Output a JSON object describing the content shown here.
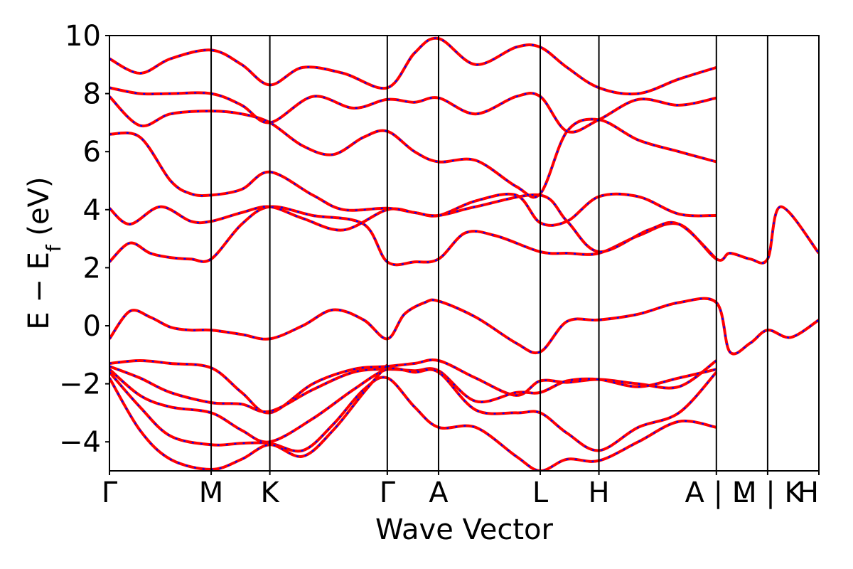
{
  "chart_data": {
    "type": "line",
    "xlabel": "Wave Vector",
    "ylabel": "E − E",
    "ylabel_sub": "f",
    "ylabel_unit": " (eV)",
    "ylim": [
      -5,
      10
    ],
    "yticks": [
      -4,
      -2,
      0,
      2,
      4,
      6,
      8,
      10
    ],
    "ytick_labels": [
      "−4",
      "−2",
      "0",
      "2",
      "4",
      "6",
      "8",
      "10"
    ],
    "grid": false,
    "legend": "none",
    "colors": {
      "dft": "#ff0000",
      "wannier": "#0000ff",
      "frame": "#000000"
    },
    "kpoints": [
      {
        "label": "Γ",
        "x": 0.0
      },
      {
        "label": "M",
        "x": 1.0
      },
      {
        "label": "K",
        "x": 1.577
      },
      {
        "label": "Γ",
        "x": 2.732
      },
      {
        "label": "A",
        "x": 3.236
      },
      {
        "label": "L",
        "x": 4.236
      },
      {
        "label": "H",
        "x": 4.813
      },
      {
        "label": "A | L",
        "x": 5.968
      },
      {
        "label": "M | K",
        "x": 6.472
      },
      {
        "label": "H",
        "x": 6.976
      }
    ],
    "xlim": [
      0.0,
      6.976
    ],
    "series": [
      {
        "x": [
          0,
          0.2,
          0.4,
          0.6,
          0.8,
          1.0,
          1.3,
          1.577,
          1.9,
          2.2,
          2.5,
          2.732,
          2.9,
          3.1,
          3.236,
          3.6,
          4.0,
          4.236,
          4.5,
          4.813,
          5.2,
          5.6,
          5.968,
          6.1,
          6.3,
          6.472,
          6.7,
          6.976
        ],
        "y": [
          -0.45,
          0.5,
          0.3,
          -0.05,
          -0.15,
          -0.15,
          -0.3,
          -0.45,
          0.0,
          0.55,
          0.2,
          -0.45,
          0.4,
          0.8,
          0.85,
          0.3,
          -0.6,
          -0.9,
          0.15,
          0.2,
          0.4,
          0.8,
          0.8,
          -0.9,
          -0.6,
          -0.15,
          -0.4,
          0.2
        ]
      },
      {
        "x": [
          0,
          0.2,
          0.4,
          0.6,
          0.8,
          1.0,
          1.3,
          1.577,
          2.0,
          2.5,
          2.732,
          3.0,
          3.236,
          3.5,
          3.8,
          4.236,
          4.5,
          4.813,
          5.2,
          5.6,
          5.968,
          6.1,
          6.3,
          6.472,
          6.6,
          6.976
        ],
        "y": [
          2.2,
          2.85,
          2.5,
          2.35,
          2.3,
          2.3,
          3.5,
          4.1,
          3.8,
          3.5,
          2.2,
          2.2,
          2.3,
          3.2,
          3.1,
          2.55,
          2.5,
          2.5,
          3.1,
          3.5,
          2.3,
          2.5,
          2.3,
          2.3,
          4.1,
          2.5
        ]
      },
      {
        "x": [
          0,
          0.2,
          0.5,
          0.8,
          1.0,
          1.3,
          1.577,
          1.9,
          2.3,
          2.732,
          3.0,
          3.236,
          3.6,
          4.0,
          4.236,
          4.5,
          4.813,
          5.2,
          5.6,
          5.968
        ],
        "y": [
          4.05,
          3.5,
          4.1,
          3.6,
          3.6,
          3.9,
          4.1,
          3.7,
          3.3,
          4.0,
          3.9,
          3.8,
          4.3,
          4.5,
          3.55,
          3.6,
          4.45,
          4.45,
          3.85,
          3.8
        ]
      },
      {
        "x": [
          0,
          0.3,
          0.6,
          0.8,
          1.0,
          1.3,
          1.577,
          2.0,
          2.3,
          2.732,
          3.0,
          3.236,
          3.6,
          4.236,
          4.5,
          4.813,
          5.3,
          5.6,
          5.968
        ],
        "y": [
          6.6,
          6.5,
          5.0,
          4.55,
          4.5,
          4.7,
          5.3,
          4.5,
          4.0,
          4.05,
          3.9,
          3.8,
          4.1,
          4.5,
          3.6,
          2.55,
          3.3,
          3.5,
          2.3
        ]
      },
      {
        "x": [
          0,
          0.3,
          0.6,
          1.0,
          1.3,
          1.577,
          1.9,
          2.2,
          2.5,
          2.732,
          3.0,
          3.236,
          3.6,
          4.0,
          4.236,
          4.5,
          4.813,
          5.2,
          5.6,
          5.968
        ],
        "y": [
          7.9,
          6.9,
          7.3,
          7.4,
          7.3,
          7.0,
          6.2,
          5.9,
          6.5,
          6.7,
          6.0,
          5.65,
          5.7,
          4.8,
          4.55,
          6.7,
          7.1,
          6.4,
          6.0,
          5.65
        ]
      },
      {
        "x": [
          0,
          0.3,
          0.6,
          1.0,
          1.3,
          1.577,
          2.0,
          2.4,
          2.732,
          3.0,
          3.236,
          3.6,
          4.0,
          4.236,
          4.5,
          4.813,
          5.2,
          5.6,
          5.968
        ],
        "y": [
          8.2,
          8.0,
          8.0,
          8.0,
          7.6,
          7.0,
          7.9,
          7.5,
          7.8,
          7.7,
          7.85,
          7.3,
          7.9,
          7.9,
          6.7,
          7.1,
          7.8,
          7.6,
          7.85
        ]
      },
      {
        "x": [
          0,
          0.3,
          0.6,
          1.0,
          1.3,
          1.577,
          1.9,
          2.3,
          2.732,
          3.0,
          3.236,
          3.6,
          4.0,
          4.236,
          4.5,
          4.813,
          5.2,
          5.6,
          5.968
        ],
        "y": [
          9.2,
          8.7,
          9.2,
          9.5,
          9.0,
          8.3,
          8.9,
          8.7,
          8.2,
          9.4,
          9.9,
          9.0,
          9.6,
          9.6,
          8.9,
          8.2,
          8.0,
          8.5,
          8.9
        ]
      },
      {
        "x": [
          0,
          0.3,
          0.6,
          1.0,
          1.3,
          1.577,
          2.0,
          2.4,
          2.732,
          3.0,
          3.236,
          3.6,
          4.0,
          4.236,
          4.5,
          4.813,
          5.2,
          5.6,
          5.968
        ],
        "y": [
          -1.3,
          -1.2,
          -1.3,
          -1.45,
          -2.3,
          -3.0,
          -2.0,
          -1.5,
          -1.4,
          -1.3,
          -1.2,
          -1.8,
          -2.4,
          -1.9,
          -1.95,
          -1.85,
          -2.0,
          -2.1,
          -1.2
        ]
      },
      {
        "x": [
          0,
          0.3,
          0.6,
          1.0,
          1.3,
          1.577,
          2.0,
          2.4,
          2.732,
          3.0,
          3.236,
          3.6,
          4.0,
          4.236,
          4.5,
          4.813,
          5.2,
          5.6,
          5.968
        ],
        "y": [
          -1.4,
          -1.8,
          -2.3,
          -2.65,
          -2.7,
          -2.95,
          -2.2,
          -1.6,
          -1.5,
          -1.55,
          -1.55,
          -2.6,
          -2.3,
          -2.3,
          -1.9,
          -1.85,
          -2.1,
          -1.8,
          -1.5
        ]
      },
      {
        "x": [
          0,
          0.3,
          0.6,
          1.0,
          1.3,
          1.577,
          2.0,
          2.4,
          2.732,
          3.0,
          3.236,
          3.6,
          4.0,
          4.236,
          4.5,
          4.813,
          5.2,
          5.6,
          5.968
        ],
        "y": [
          -1.5,
          -2.4,
          -2.8,
          -3.0,
          -3.6,
          -4.0,
          -3.2,
          -2.2,
          -1.5,
          -1.6,
          -1.6,
          -2.9,
          -3.0,
          -3.0,
          -3.7,
          -4.3,
          -3.5,
          -3.0,
          -1.6
        ]
      },
      {
        "x": [
          0,
          0.3,
          0.6,
          1.0,
          1.3,
          1.577,
          1.9,
          2.2,
          2.5,
          2.732,
          3.0,
          3.236,
          3.6,
          4.0,
          4.236,
          4.5,
          4.813,
          5.2,
          5.6,
          5.968
        ],
        "y": [
          -1.6,
          -2.8,
          -3.8,
          -4.1,
          -4.05,
          -4.05,
          -4.3,
          -3.4,
          -2.2,
          -1.8,
          -2.8,
          -3.5,
          -3.5,
          -4.5,
          -5.0,
          -4.6,
          -4.65,
          -4.0,
          -3.3,
          -3.5
        ]
      },
      {
        "x": [
          0,
          0.3,
          0.6,
          1.0,
          1.3,
          1.577,
          1.9,
          2.2,
          2.5,
          2.732
        ],
        "y": [
          -1.8,
          -3.6,
          -4.6,
          -4.95,
          -4.6,
          -4.1,
          -4.5,
          -3.6,
          -2.3,
          -1.35
        ]
      }
    ]
  }
}
